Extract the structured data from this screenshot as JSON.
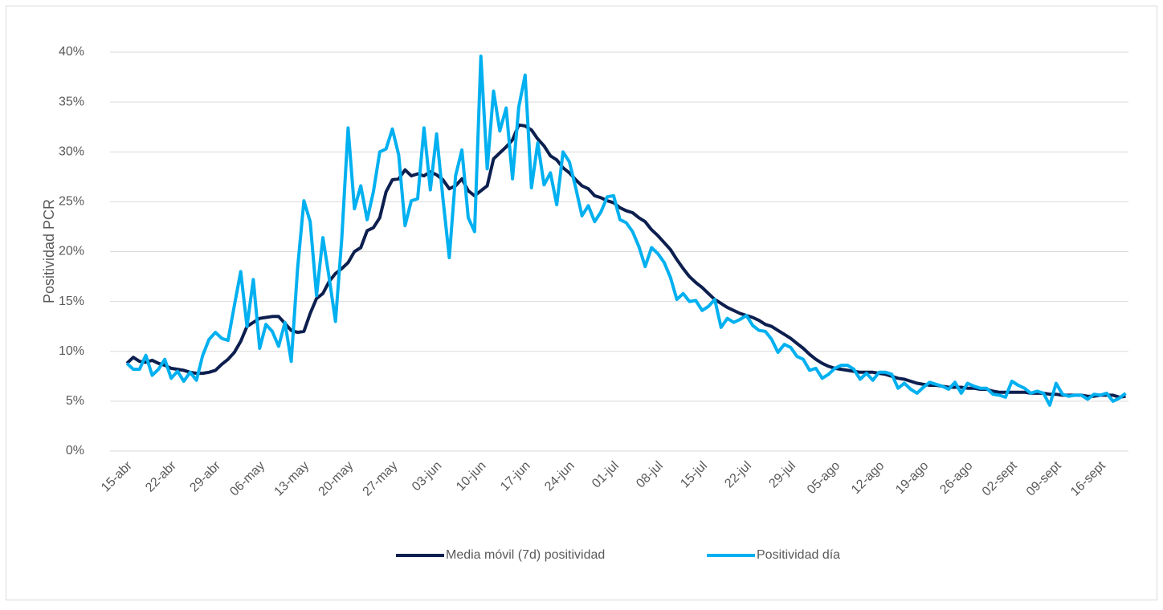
{
  "chart_data": {
    "type": "line",
    "y_label": "Positividad PCR",
    "categories": [
      "15-abr",
      null,
      null,
      null,
      null,
      null,
      null,
      "22-abr",
      null,
      null,
      null,
      null,
      null,
      null,
      "29-abr",
      null,
      null,
      null,
      null,
      null,
      null,
      "06-may",
      null,
      null,
      null,
      null,
      null,
      null,
      "13-may",
      null,
      null,
      null,
      null,
      null,
      null,
      "20-may",
      null,
      null,
      null,
      null,
      null,
      null,
      "27-may",
      null,
      null,
      null,
      null,
      null,
      null,
      "03-jun",
      null,
      null,
      null,
      null,
      null,
      null,
      "10-jun",
      null,
      null,
      null,
      null,
      null,
      null,
      "17-jun",
      null,
      null,
      null,
      null,
      null,
      null,
      "24-jun",
      null,
      null,
      null,
      null,
      null,
      null,
      "01-jul",
      null,
      null,
      null,
      null,
      null,
      null,
      "08-jul",
      null,
      null,
      null,
      null,
      null,
      null,
      "15-jul",
      null,
      null,
      null,
      null,
      null,
      null,
      "22-jul",
      null,
      null,
      null,
      null,
      null,
      null,
      "29-jul",
      null,
      null,
      null,
      null,
      null,
      null,
      "05-ago",
      null,
      null,
      null,
      null,
      null,
      null,
      "12-ago",
      null,
      null,
      null,
      null,
      null,
      null,
      "19-ago",
      null,
      null,
      null,
      null,
      null,
      null,
      "26-ago",
      null,
      null,
      null,
      null,
      null,
      null,
      "02-sept",
      null,
      null,
      null,
      null,
      null,
      null,
      "09-sept",
      null,
      null,
      null,
      null,
      null,
      null,
      "16-sept",
      null,
      null,
      null,
      null
    ],
    "series": [
      {
        "name": "Media móvil (7d) positividad",
        "color": "#0c1f4f",
        "values": [
          8.8,
          9.4,
          9.0,
          8.9,
          9.1,
          8.8,
          8.6,
          8.3,
          8.2,
          8.1,
          7.9,
          7.8,
          7.8,
          7.9,
          8.1,
          8.7,
          9.2,
          9.9,
          11.0,
          12.5,
          12.9,
          13.3,
          13.4,
          13.5,
          13.5,
          12.8,
          12.1,
          11.9,
          12.0,
          13.8,
          15.3,
          15.8,
          17.0,
          17.8,
          18.3,
          18.9,
          20.0,
          20.4,
          22.1,
          22.4,
          23.4,
          26.0,
          27.2,
          27.3,
          28.2,
          27.6,
          27.8,
          27.6,
          28.0,
          27.7,
          27.2,
          26.3,
          26.6,
          27.3,
          26.1,
          25.6,
          26.1,
          26.6,
          29.3,
          29.9,
          30.5,
          31.2,
          32.7,
          32.6,
          32.2,
          31.3,
          30.6,
          29.6,
          29.2,
          28.4,
          27.9,
          27.2,
          26.6,
          26.3,
          25.6,
          25.4,
          25.1,
          24.9,
          24.4,
          24.1,
          23.9,
          23.4,
          23.0,
          22.2,
          21.6,
          20.9,
          20.2,
          19.2,
          18.3,
          17.5,
          16.9,
          16.4,
          15.8,
          15.2,
          14.8,
          14.4,
          14.1,
          13.8,
          13.6,
          13.4,
          13.1,
          12.7,
          12.5,
          12.1,
          11.7,
          11.3,
          10.8,
          10.3,
          9.7,
          9.2,
          8.8,
          8.5,
          8.3,
          8.2,
          8.1,
          8.0,
          7.9,
          7.9,
          7.9,
          7.8,
          7.7,
          7.5,
          7.3,
          7.2,
          7.0,
          6.8,
          6.7,
          6.6,
          6.6,
          6.5,
          6.4,
          6.4,
          6.4,
          6.3,
          6.3,
          6.2,
          6.2,
          6.0,
          5.9,
          5.9,
          5.9,
          5.9,
          5.9,
          5.8,
          5.8,
          5.8,
          5.7,
          5.7,
          5.6,
          5.6,
          5.6,
          5.6,
          5.5,
          5.5,
          5.6,
          5.6,
          5.6,
          5.4,
          5.5
        ]
      },
      {
        "name": "Positividad día",
        "color": "#00b0f0",
        "values": [
          8.8,
          8.2,
          8.2,
          9.6,
          7.6,
          8.2,
          9.2,
          7.3,
          8.0,
          7.0,
          7.9,
          7.1,
          9.6,
          11.2,
          11.9,
          11.3,
          11.1,
          14.6,
          18.0,
          12.5,
          17.2,
          10.3,
          12.7,
          12.0,
          10.5,
          12.9,
          9.0,
          18.3,
          25.1,
          23.0,
          15.6,
          21.4,
          17.4,
          13.0,
          21.4,
          32.4,
          24.3,
          26.6,
          23.2,
          26.0,
          30.0,
          30.3,
          32.3,
          29.7,
          22.6,
          25.1,
          25.3,
          32.4,
          26.2,
          31.8,
          25.3,
          19.4,
          27.6,
          30.2,
          23.4,
          22.0,
          39.6,
          28.3,
          36.1,
          32.1,
          34.4,
          27.3,
          34.5,
          37.7,
          26.4,
          30.9,
          26.7,
          27.9,
          24.7,
          30.0,
          29.0,
          26.4,
          23.6,
          24.6,
          23.0,
          24.0,
          25.5,
          25.6,
          23.2,
          22.9,
          22.0,
          20.5,
          18.5,
          20.4,
          19.8,
          18.9,
          17.4,
          15.2,
          15.8,
          15.0,
          15.1,
          14.1,
          14.5,
          15.2,
          12.4,
          13.3,
          12.9,
          13.2,
          13.6,
          12.6,
          12.1,
          12.0,
          11.2,
          9.9,
          10.7,
          10.4,
          9.5,
          9.2,
          8.1,
          8.3,
          7.3,
          7.7,
          8.3,
          8.6,
          8.6,
          8.2,
          7.2,
          7.8,
          7.1,
          7.9,
          7.9,
          7.7,
          6.3,
          6.8,
          6.2,
          5.8,
          6.4,
          6.9,
          6.7,
          6.5,
          6.2,
          6.9,
          5.8,
          6.8,
          6.5,
          6.3,
          6.3,
          5.7,
          5.6,
          5.4,
          7.0,
          6.6,
          6.3,
          5.8,
          6.0,
          5.8,
          4.6,
          6.8,
          5.7,
          5.5,
          5.6,
          5.6,
          5.2,
          5.7,
          5.6,
          5.8,
          5.0,
          5.3,
          5.8
        ]
      }
    ],
    "ylim": [
      0,
      40
    ],
    "yticks": [
      {
        "value": 0,
        "label": "0%"
      },
      {
        "value": 5,
        "label": "5%"
      },
      {
        "value": 10,
        "label": "10%"
      },
      {
        "value": 15,
        "label": "15%"
      },
      {
        "value": 20,
        "label": "20%"
      },
      {
        "value": 25,
        "label": "25%"
      },
      {
        "value": 30,
        "label": "30%"
      },
      {
        "value": 35,
        "label": "35%"
      },
      {
        "value": 40,
        "label": "40%"
      }
    ],
    "grid": true,
    "legend": "bottom"
  }
}
